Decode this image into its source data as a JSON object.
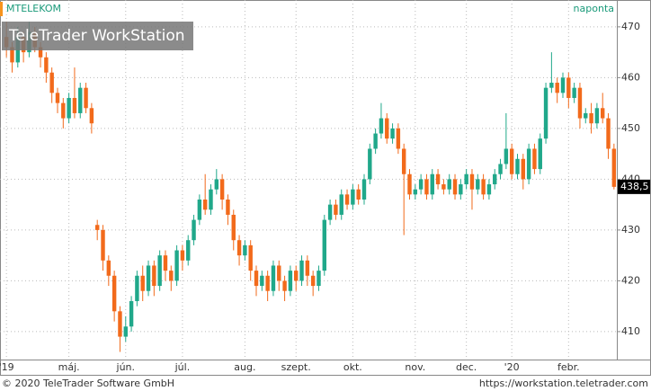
{
  "chart_data": {
    "type": "candlestick",
    "title": "MTELEKOM",
    "subtitle": "naponta",
    "watermark": "TeleTrader WorkStation",
    "footer_left": "© 2020 TeleTrader Software GmbH",
    "footer_right": "https://workstation.teletrader.com",
    "up_color": "#20a88a",
    "down_color": "#f26a1b",
    "ylim": [
      404.5,
      472.1
    ],
    "yticks": [
      410,
      420,
      430,
      440,
      450,
      460,
      470
    ],
    "grid": true,
    "last_price": {
      "value": 438.5,
      "label": "438,5"
    },
    "categories": [
      "'19",
      null,
      null,
      null,
      null,
      null,
      null,
      null,
      null,
      null,
      null,
      "máj.",
      null,
      null,
      null,
      null,
      null,
      null,
      null,
      null,
      null,
      "jún.",
      null,
      null,
      null,
      null,
      null,
      null,
      null,
      null,
      null,
      "júl.",
      null,
      null,
      null,
      null,
      null,
      null,
      null,
      null,
      null,
      null,
      "aug.",
      null,
      null,
      null,
      null,
      null,
      null,
      null,
      null,
      "szept.",
      null,
      null,
      null,
      null,
      null,
      null,
      null,
      null,
      null,
      "okt.",
      null,
      null,
      null,
      null,
      null,
      null,
      null,
      null,
      null,
      null,
      "nov.",
      null,
      null,
      null,
      null,
      null,
      null,
      null,
      null,
      "dec.",
      null,
      null,
      null,
      null,
      null,
      null,
      null,
      "'20",
      null,
      null,
      null,
      null,
      null,
      null,
      null,
      null,
      null,
      "febr.",
      null,
      null,
      null,
      null,
      null,
      null,
      null,
      null
    ],
    "open": [
      468,
      466,
      463,
      468,
      465,
      469,
      466,
      464,
      461,
      457,
      455,
      452,
      456,
      453,
      458,
      454,
      431,
      430,
      424,
      421,
      414,
      409,
      411,
      416,
      421,
      418,
      423,
      419,
      425,
      422,
      420,
      426,
      424,
      428,
      432,
      436,
      434,
      438,
      440,
      436,
      433,
      428,
      425,
      427,
      422,
      419,
      421,
      418,
      423,
      420,
      418,
      422,
      420,
      424,
      421,
      419,
      422,
      432,
      435,
      433,
      437,
      435,
      438,
      436,
      440,
      446,
      449,
      452,
      448,
      450,
      446,
      441,
      437,
      438,
      440,
      437,
      441,
      439,
      438,
      440,
      437,
      439,
      441,
      438,
      440,
      437,
      439,
      441,
      443,
      446,
      441,
      444,
      440,
      446,
      442,
      448,
      458,
      459,
      457,
      460,
      456,
      458,
      452,
      453,
      451,
      454,
      452,
      446
    ],
    "high": [
      471,
      467,
      470,
      469,
      471,
      470,
      467,
      465,
      462,
      458,
      456,
      457,
      462,
      459,
      459,
      455,
      432,
      431,
      425,
      422,
      415,
      413,
      417,
      422,
      423,
      424,
      424,
      426,
      426,
      423,
      427,
      427,
      429,
      433,
      437,
      441,
      439,
      442,
      441,
      437,
      434,
      429,
      428,
      428,
      423,
      422,
      422,
      424,
      424,
      421,
      423,
      423,
      425,
      425,
      422,
      423,
      433,
      436,
      436,
      438,
      438,
      439,
      439,
      441,
      447,
      450,
      455,
      453,
      451,
      451,
      447,
      442,
      439,
      441,
      441,
      442,
      442,
      440,
      441,
      441,
      440,
      442,
      442,
      441,
      441,
      440,
      442,
      444,
      453,
      447,
      445,
      445,
      447,
      447,
      449,
      459,
      465,
      460,
      461,
      461,
      459,
      459,
      454,
      455,
      455,
      457,
      453,
      447
    ],
    "low": [
      464,
      461,
      462,
      463,
      464,
      465,
      462,
      459,
      455,
      453,
      450,
      451,
      452,
      452,
      453,
      449,
      428,
      422,
      419,
      412,
      406,
      408,
      410,
      415,
      416,
      417,
      417,
      418,
      420,
      418,
      419,
      422,
      423,
      427,
      431,
      433,
      433,
      437,
      434,
      431,
      426,
      423,
      424,
      420,
      417,
      418,
      416,
      417,
      418,
      416,
      417,
      418,
      419,
      419,
      417,
      418,
      421,
      431,
      432,
      432,
      434,
      434,
      435,
      435,
      439,
      445,
      448,
      447,
      447,
      445,
      429,
      436,
      436,
      437,
      436,
      436,
      438,
      437,
      437,
      436,
      436,
      438,
      434,
      437,
      436,
      436,
      438,
      440,
      442,
      440,
      440,
      438,
      439,
      441,
      441,
      447,
      457,
      455,
      456,
      454,
      455,
      450,
      451,
      449,
      450,
      451,
      444,
      438
    ],
    "close": [
      466,
      463,
      468,
      465,
      469,
      466,
      464,
      461,
      457,
      455,
      452,
      456,
      453,
      458,
      454,
      451,
      430,
      424,
      421,
      414,
      409,
      411,
      416,
      421,
      418,
      423,
      419,
      425,
      422,
      420,
      426,
      424,
      428,
      432,
      436,
      434,
      438,
      440,
      436,
      433,
      428,
      425,
      427,
      422,
      419,
      421,
      418,
      423,
      420,
      418,
      422,
      420,
      424,
      421,
      419,
      422,
      432,
      435,
      433,
      437,
      435,
      438,
      436,
      440,
      446,
      449,
      452,
      448,
      450,
      446,
      441,
      437,
      438,
      440,
      437,
      441,
      439,
      438,
      440,
      437,
      439,
      441,
      438,
      440,
      437,
      439,
      441,
      443,
      446,
      441,
      444,
      440,
      446,
      442,
      448,
      458,
      459,
      457,
      460,
      456,
      458,
      452,
      453,
      451,
      454,
      452,
      446,
      438.5
    ]
  }
}
